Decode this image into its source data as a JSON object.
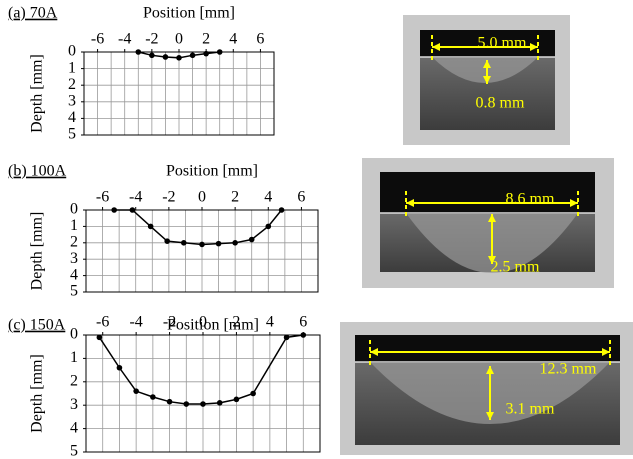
{
  "chart_data": [
    {
      "type": "line",
      "title": "(a) 70A",
      "xlabel": "Position [mm]",
      "ylabel": "Depth [mm]",
      "x": [
        -3,
        -2,
        -1,
        0,
        1,
        2,
        3
      ],
      "series": [
        {
          "color": "#000000",
          "values": [
            0,
            0.2,
            0.3,
            0.35,
            0.2,
            0.1,
            0
          ]
        }
      ],
      "xlim": [
        -7,
        7
      ],
      "xticks": [
        -6,
        -4,
        -2,
        0,
        2,
        4,
        6
      ],
      "ylim": [
        0,
        5
      ],
      "yticks": [
        0,
        1,
        2,
        3,
        4,
        5
      ],
      "y_inverted": true,
      "grid": true,
      "grid_step": 1,
      "annotations": [
        "5.0 mm",
        "0.8 mm"
      ]
    },
    {
      "type": "line",
      "title": "(b) 100A",
      "xlabel": "Position [mm]",
      "ylabel": "Depth [mm]",
      "x": [
        -5.3,
        -4.2,
        -3.1,
        -2.1,
        -1.1,
        0,
        1,
        2,
        3,
        4,
        4.8
      ],
      "series": [
        {
          "color": "#000000",
          "values": [
            0,
            0,
            1,
            1.9,
            2,
            2.1,
            2.05,
            2,
            1.8,
            1,
            0
          ]
        }
      ],
      "xlim": [
        -7,
        7
      ],
      "xticks": [
        -6,
        -4,
        -2,
        0,
        2,
        4,
        6
      ],
      "ylim": [
        0,
        5
      ],
      "yticks": [
        0,
        1,
        2,
        3,
        4,
        5
      ],
      "y_inverted": true,
      "grid": true,
      "grid_step": 1,
      "annotations": [
        "8.6 mm",
        "2.5 mm"
      ]
    },
    {
      "type": "line",
      "title": "(c) 150A",
      "xlabel": "Position [mm]",
      "ylabel": "Depth [mm]",
      "x": [
        -6.2,
        -5,
        -4,
        -3,
        -2,
        -1,
        0,
        1,
        2,
        3,
        5,
        6
      ],
      "series": [
        {
          "color": "#000000",
          "values": [
            0.1,
            1.4,
            2.4,
            2.65,
            2.85,
            2.95,
            2.95,
            2.9,
            2.75,
            2.5,
            0.1,
            0
          ]
        }
      ],
      "xlim": [
        -7,
        7
      ],
      "xticks": [
        -6,
        -4,
        -2,
        0,
        2,
        4,
        6
      ],
      "ylim": [
        0,
        5
      ],
      "yticks": [
        0,
        1,
        2,
        3,
        4,
        5
      ],
      "y_inverted": true,
      "grid": true,
      "grid_step": 1,
      "annotations": [
        "12.3 mm",
        "3.1 mm"
      ]
    }
  ]
}
